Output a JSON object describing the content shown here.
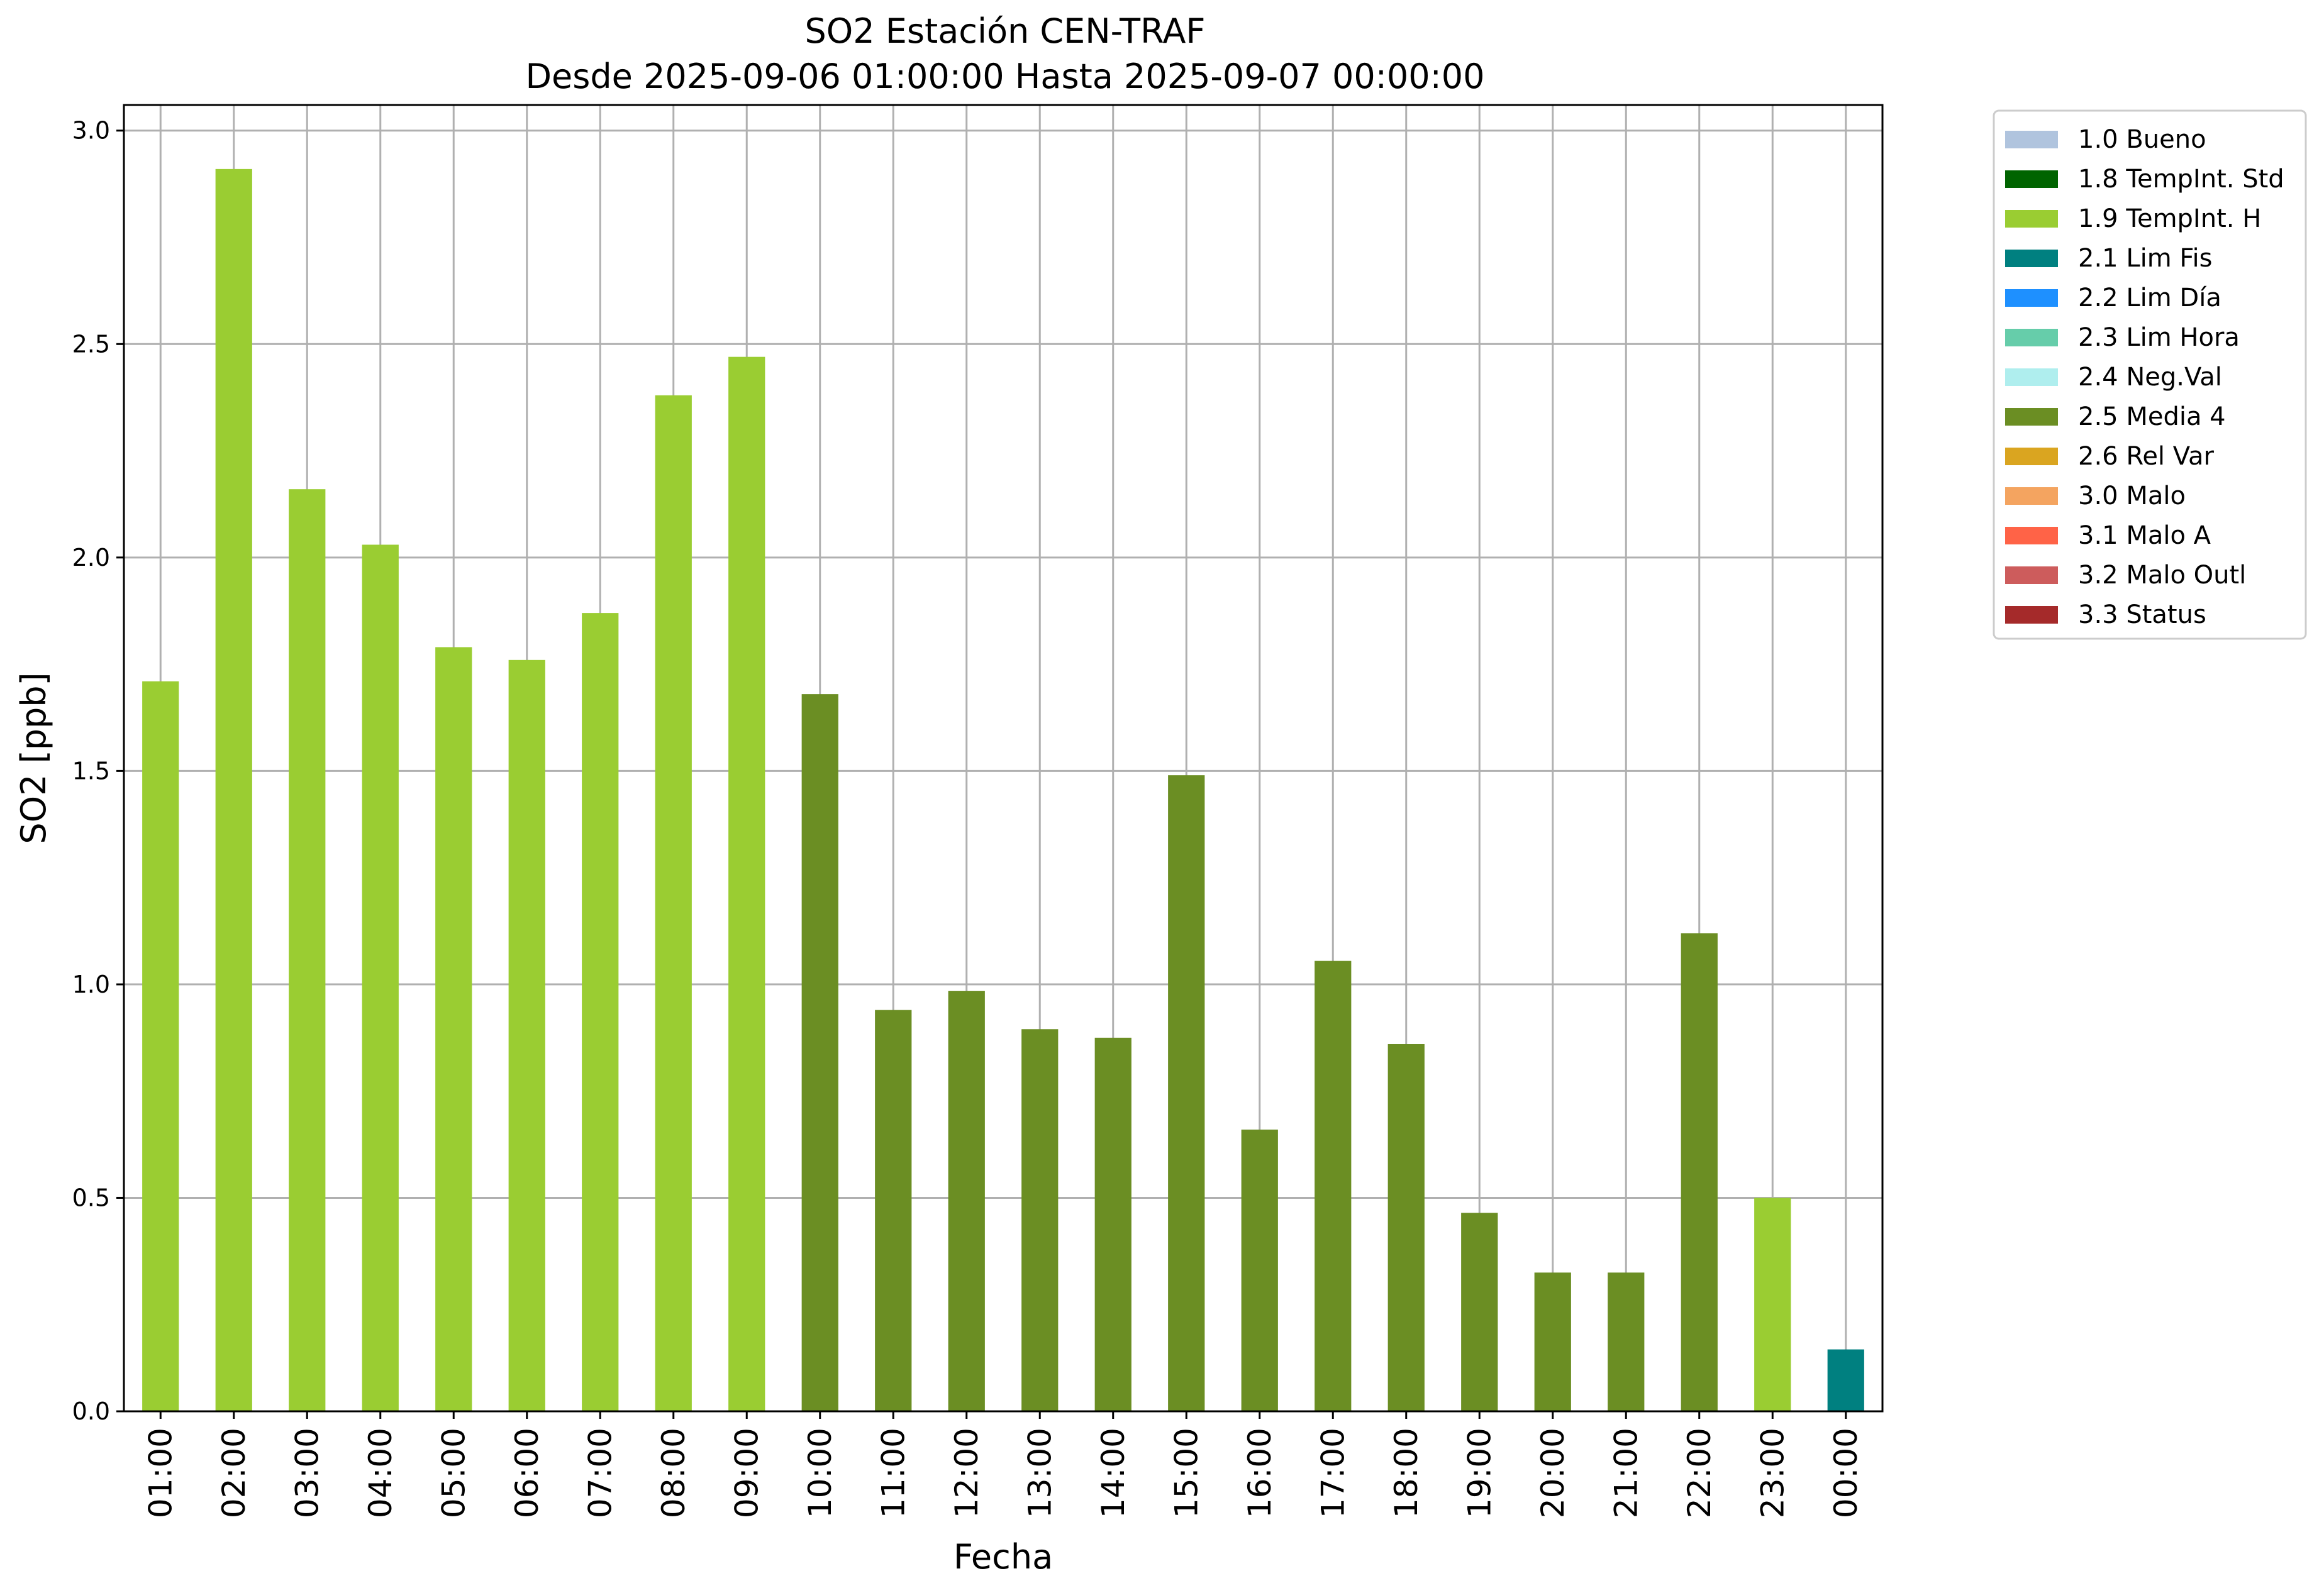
{
  "chart_data": {
    "type": "bar",
    "title": "SO2 Estación CEN-TRAF",
    "subtitle": "Desde 2025-09-06 01:00:00 Hasta 2025-09-07 00:00:00",
    "xlabel": "Fecha",
    "ylabel": "SO2 [ppb]",
    "ylim": [
      0,
      3.06
    ],
    "yticks": [
      "0.0",
      "0.5",
      "1.0",
      "1.5",
      "2.0",
      "2.5",
      "3.0"
    ],
    "grid": true,
    "legend_placement": "outside-top-right",
    "categories": [
      "01:00",
      "02:00",
      "03:00",
      "04:00",
      "05:00",
      "06:00",
      "07:00",
      "08:00",
      "09:00",
      "10:00",
      "11:00",
      "12:00",
      "13:00",
      "14:00",
      "15:00",
      "16:00",
      "17:00",
      "18:00",
      "19:00",
      "20:00",
      "21:00",
      "22:00",
      "23:00",
      "00:00"
    ],
    "values": [
      1.71,
      2.91,
      2.16,
      2.03,
      1.79,
      1.76,
      1.87,
      2.38,
      2.47,
      1.68,
      0.94,
      0.985,
      0.895,
      0.875,
      1.49,
      0.66,
      1.055,
      0.86,
      0.465,
      0.325,
      0.325,
      1.12,
      0.5,
      0.145
    ],
    "value_classes": [
      "1.9 TempInt. H",
      "1.9 TempInt. H",
      "1.9 TempInt. H",
      "1.9 TempInt. H",
      "1.9 TempInt. H",
      "1.9 TempInt. H",
      "1.9 TempInt. H",
      "1.9 TempInt. H",
      "1.9 TempInt. H",
      "2.5 Media 4",
      "2.5 Media 4",
      "2.5 Media 4",
      "2.5 Media 4",
      "2.5 Media 4",
      "2.5 Media 4",
      "2.5 Media 4",
      "2.5 Media 4",
      "2.5 Media 4",
      "2.5 Media 4",
      "2.5 Media 4",
      "2.5 Media 4",
      "2.5 Media 4",
      "1.9 TempInt. H",
      "2.1 Lim Fis"
    ],
    "legend": [
      {
        "label": "1.0 Bueno",
        "color": "#b0c4de"
      },
      {
        "label": "1.8 TempInt. Std",
        "color": "#006400"
      },
      {
        "label": "1.9 TempInt. H",
        "color": "#9acd32"
      },
      {
        "label": "2.1 Lim Fis",
        "color": "#008080"
      },
      {
        "label": "2.2 Lim Día",
        "color": "#1e90ff"
      },
      {
        "label": "2.3 Lim Hora",
        "color": "#66cdaa"
      },
      {
        "label": "2.4 Neg.Val",
        "color": "#afeeee"
      },
      {
        "label": "2.5 Media 4",
        "color": "#6b8e23"
      },
      {
        "label": "2.6 Rel Var",
        "color": "#daa520"
      },
      {
        "label": "3.0 Malo",
        "color": "#f4a460"
      },
      {
        "label": "3.1 Malo A",
        "color": "#ff6347"
      },
      {
        "label": "3.2 Malo Outl",
        "color": "#cd5c5c"
      },
      {
        "label": "3.3 Status",
        "color": "#a52a2a"
      }
    ]
  }
}
